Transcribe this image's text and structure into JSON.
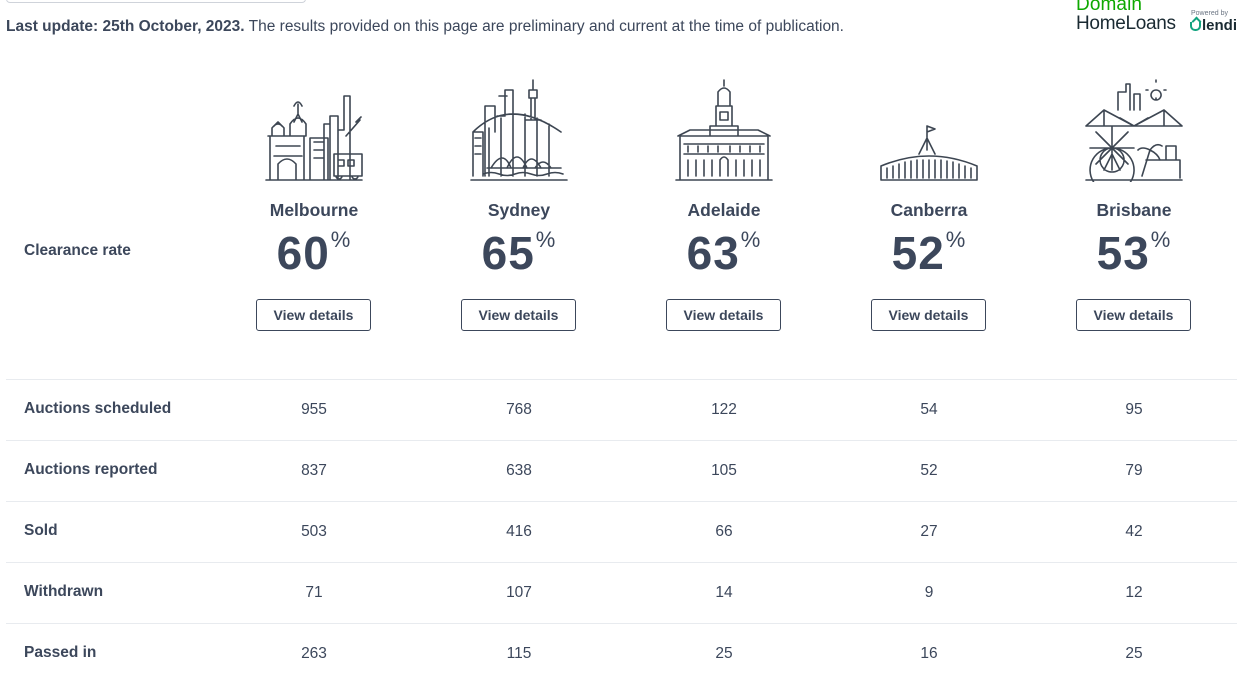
{
  "header": {
    "update_label": "Last update: 25th October, 2023.",
    "update_note": " The results provided on this page are preliminary and current at the time of publication."
  },
  "brand": {
    "domain": "Domain",
    "home_loans": "HomeLoans",
    "powered_by": "Powered by",
    "partner": "lendi"
  },
  "colors": {
    "text": "#3c475b",
    "brand_green": "#0ea800",
    "lendi_green": "#12a37f",
    "divider": "#e8ebef"
  },
  "clearance_label": "Clearance rate",
  "percent_sign": "%",
  "cities": [
    {
      "name": "Melbourne",
      "rate": "60",
      "button": "View details",
      "icon": "melbourne-skyline-icon"
    },
    {
      "name": "Sydney",
      "rate": "65",
      "button": "View details",
      "icon": "sydney-skyline-icon"
    },
    {
      "name": "Adelaide",
      "rate": "63",
      "button": "View details",
      "icon": "adelaide-skyline-icon"
    },
    {
      "name": "Canberra",
      "rate": "52",
      "button": "View details",
      "icon": "canberra-skyline-icon"
    },
    {
      "name": "Brisbane",
      "rate": "53",
      "button": "View details",
      "icon": "brisbane-skyline-icon"
    }
  ],
  "table": {
    "rows": [
      {
        "label": "Auctions scheduled",
        "values": [
          "955",
          "768",
          "122",
          "54",
          "95"
        ]
      },
      {
        "label": "Auctions reported",
        "values": [
          "837",
          "638",
          "105",
          "52",
          "79"
        ]
      },
      {
        "label": "Sold",
        "values": [
          "503",
          "416",
          "66",
          "27",
          "42"
        ]
      },
      {
        "label": "Withdrawn",
        "values": [
          "71",
          "107",
          "14",
          "9",
          "12"
        ]
      },
      {
        "label": "Passed in",
        "values": [
          "263",
          "115",
          "25",
          "16",
          "25"
        ]
      }
    ]
  }
}
